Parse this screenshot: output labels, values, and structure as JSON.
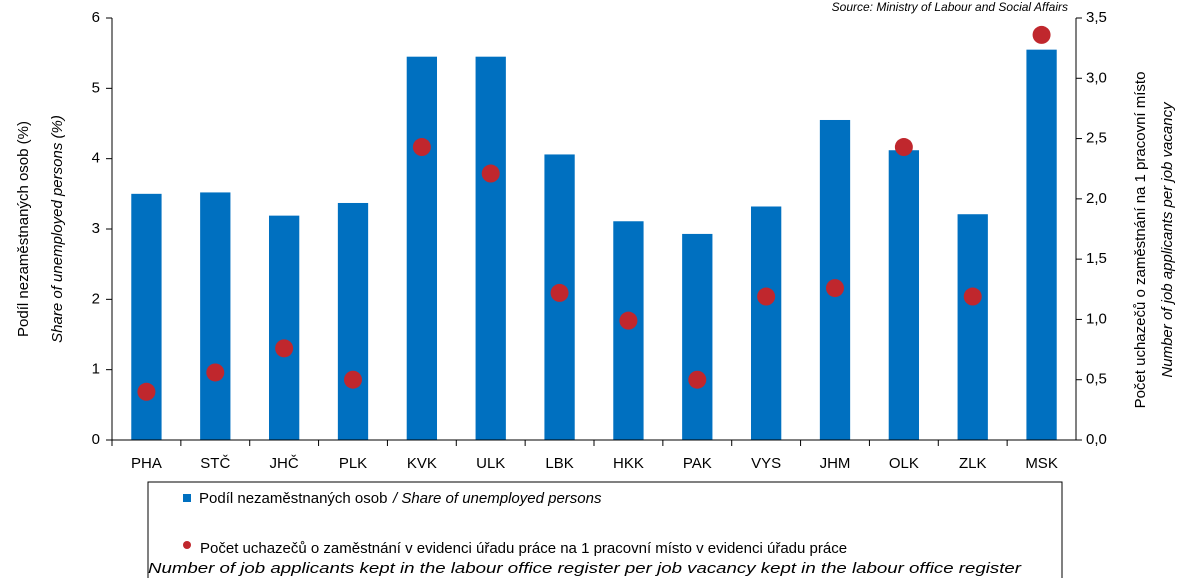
{
  "chart_data": {
    "type": "bar+scatter",
    "source": "Source: Ministry of Labour and Social Affairs",
    "ylabel": "Podíl nezaměstnaných osob (%)",
    "ylabel_en": "Share of unemployed persons (%)",
    "y2label": "Počet uchazečů o zaměstnání na 1 pracovní místo",
    "y2label_en": "Number of job applicants per job vacancy",
    "categories": [
      "PHA",
      "STČ",
      "JHČ",
      "PLK",
      "KVK",
      "ULK",
      "LBK",
      "HKK",
      "PAK",
      "VYS",
      "JHM",
      "OLK",
      "ZLK",
      "MSK"
    ],
    "ylim": [
      0,
      6
    ],
    "yticks": [
      0,
      1,
      2,
      3,
      4,
      5,
      6
    ],
    "y2lim": [
      0,
      3.5
    ],
    "y2ticks": [
      {
        "value": 0,
        "label": "0,0"
      },
      {
        "value": 0.5,
        "label": "0,5"
      },
      {
        "value": 1,
        "label": "1,0"
      },
      {
        "value": 1.5,
        "label": "1,5"
      },
      {
        "value": 2,
        "label": "2,0"
      },
      {
        "value": 2.5,
        "label": "2,5"
      },
      {
        "value": 3,
        "label": "3,0"
      },
      {
        "value": 3.5,
        "label": "3,5"
      }
    ],
    "series": [
      {
        "name": "Podíl nezaměstnaných osob",
        "name_en": "/ Share of unemployed persons",
        "type": "bar",
        "color": "#0070c0",
        "values": [
          3.5,
          3.52,
          3.19,
          3.37,
          5.45,
          5.45,
          4.06,
          3.11,
          2.93,
          3.32,
          4.55,
          4.12,
          3.21,
          5.55
        ]
      },
      {
        "name": "Počet uchazečů o zaměstnání v evidenci úřadu práce na 1 pracovní místo v evidenci úřadu práce",
        "name_en": "Number of job applicants kept in the labour office register per job vacancy kept in the labour office register",
        "type": "scatter",
        "axis": "y2",
        "color": "#c0272d",
        "values": [
          0.4,
          0.56,
          0.76,
          0.5,
          2.43,
          2.21,
          1.22,
          0.99,
          0.5,
          1.19,
          1.26,
          2.43,
          1.19,
          3.36
        ]
      }
    ]
  }
}
